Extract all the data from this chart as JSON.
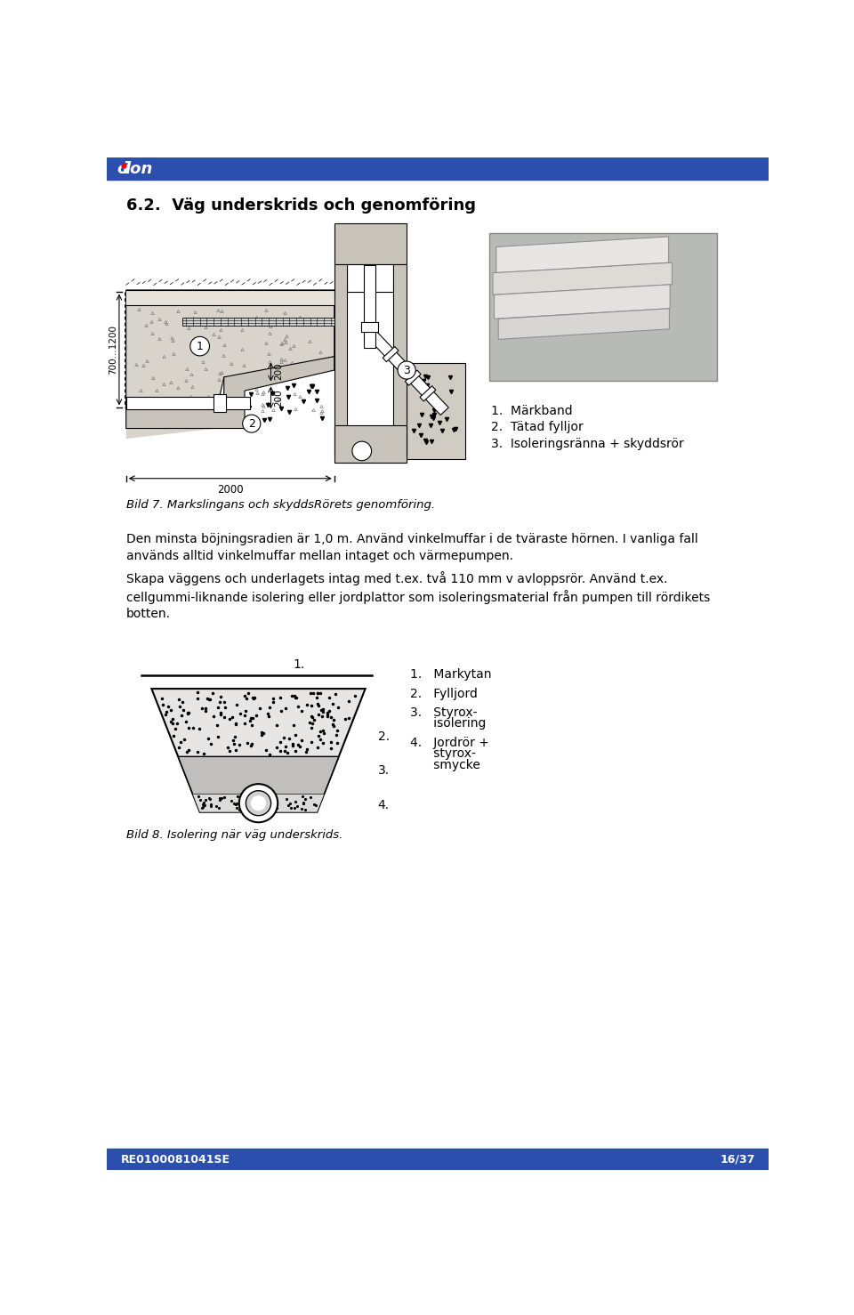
{
  "page_width": 9.6,
  "page_height": 14.78,
  "dpi": 100,
  "header_color": "#2b4fad",
  "footer_color": "#2b4fad",
  "footer_text_left": "RE0100081041SE",
  "footer_text_right": "16/37",
  "title": "6.2.  Väg underskrids och genomföring",
  "body_text_1": "Den minsta böjningsradien är 1,0 m. Använd vinkelmuffar i de tväraste hörnen. I vanliga fall används alltid vinkelmuffar mellan intaget och värmepumpen.",
  "body_text_2": "Skapa väggens och underlagets intag med t.ex. två 110 mm v avloppsRör. Använd t.ex. cellgummi-liknande isolering eller jordplattor som isoleringsmaterial från pumpen till rördikets botten.",
  "caption_fig7": "Bild 7. Markslingans och skyddsRörets genomföring.",
  "caption_fig8": "Bild 8. Isolering när väg underskrids.",
  "legend_fig7_1": "1.  Märkband",
  "legend_fig7_2": "2.  Tätad fylljor",
  "legend_fig7_3": "3.  Isoleringsränna + skyddsrör",
  "legend_fig8_1": "1.   Markytan",
  "legend_fig8_2": "2.   Fylljord",
  "legend_fig8_3a": "3.   Styrox-",
  "legend_fig8_3b": "      isolering",
  "legend_fig8_4a": "4.   Jordrör +",
  "legend_fig8_4b": "      styrox-",
  "legend_fig8_4c": "      smycke",
  "bg": "#ffffff",
  "soil_color": "#d8d4cc",
  "wall_color": "#c8c4bc",
  "right_soil_color": "#d0ccc4",
  "photo_bg": "#c0beb8",
  "pipe_layer_color": "#e8e6e2"
}
